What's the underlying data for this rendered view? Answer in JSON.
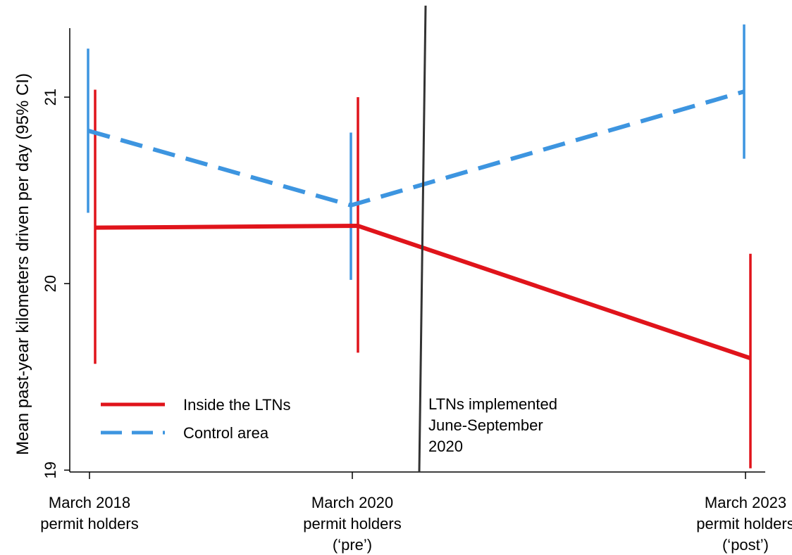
{
  "chart_data": {
    "type": "line",
    "title": "",
    "xlabel": "",
    "ylabel": "Mean past-year kilometers  driven per day (95% CI)",
    "ylim": [
      18.99,
      21.37
    ],
    "yticks": [
      19,
      20,
      21
    ],
    "categories": [
      [
        "March 2018",
        "permit holders"
      ],
      [
        "March 2020",
        "permit holders",
        "(‘pre’)"
      ],
      [
        "March 2023",
        "permit holders",
        "(‘post’)"
      ]
    ],
    "series": [
      {
        "name": "Inside the LTNs",
        "color": "#e0141b",
        "style": "solid",
        "values": [
          20.3,
          20.31,
          19.6
        ],
        "ci_low": [
          19.57,
          19.63,
          19.01
        ],
        "ci_high": [
          21.04,
          21.0,
          20.16
        ]
      },
      {
        "name": "Control area",
        "color": "#3d95e0",
        "style": "dashed",
        "values": [
          20.82,
          20.42,
          21.03
        ],
        "ci_low": [
          20.38,
          20.02,
          20.67
        ],
        "ci_high": [
          21.26,
          20.81,
          21.39
        ]
      }
    ],
    "annotation": {
      "lines": [
        "LTNs implemented",
        "June-September",
        "2020"
      ],
      "line_color": "#333333"
    },
    "legend_position": "bottom-left",
    "grid": false
  }
}
